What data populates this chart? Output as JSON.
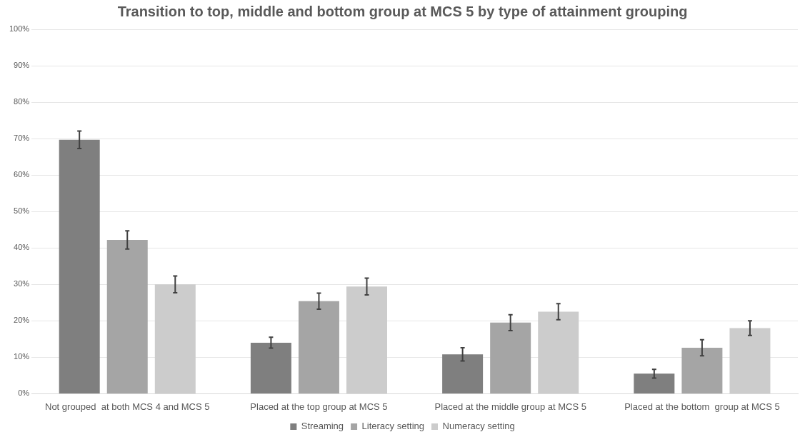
{
  "chart_data": {
    "type": "bar",
    "title": "Transition to top, middle and bottom group at MCS 5 by type of attainment grouping",
    "categories": [
      "Not grouped  at both MCS 4 and MCS 5",
      "Placed at the top group at MCS 5",
      "Placed at the middle group at MCS 5",
      "Placed at the bottom  group at MCS 5"
    ],
    "series": [
      {
        "name": "Streaming",
        "color": "#7f7f7f",
        "values": [
          69.7,
          14.0,
          10.8,
          5.5
        ],
        "errors": [
          2.4,
          1.5,
          1.8,
          1.2
        ]
      },
      {
        "name": "Literacy setting",
        "color": "#a5a5a5",
        "values": [
          42.2,
          25.4,
          19.5,
          12.6
        ],
        "errors": [
          2.5,
          2.2,
          2.2,
          2.2
        ]
      },
      {
        "name": "Numeracy setting",
        "color": "#cccccc",
        "values": [
          30.0,
          29.4,
          22.5,
          18.0
        ],
        "errors": [
          2.3,
          2.3,
          2.2,
          2.0
        ]
      }
    ],
    "ylim": [
      0,
      100
    ],
    "yticks": [
      {
        "value": 0,
        "label": "0%"
      },
      {
        "value": 10,
        "label": "10%"
      },
      {
        "value": 20,
        "label": "20%"
      },
      {
        "value": 30,
        "label": "30%"
      },
      {
        "value": 40,
        "label": "40%"
      },
      {
        "value": 50,
        "label": "50%"
      },
      {
        "value": 60,
        "label": "60%"
      },
      {
        "value": 70,
        "label": "70%"
      },
      {
        "value": 80,
        "label": "80%"
      },
      {
        "value": 90,
        "label": "90%"
      },
      {
        "value": 100,
        "label": "100%"
      }
    ],
    "grid": "y",
    "legend": "bottom"
  }
}
